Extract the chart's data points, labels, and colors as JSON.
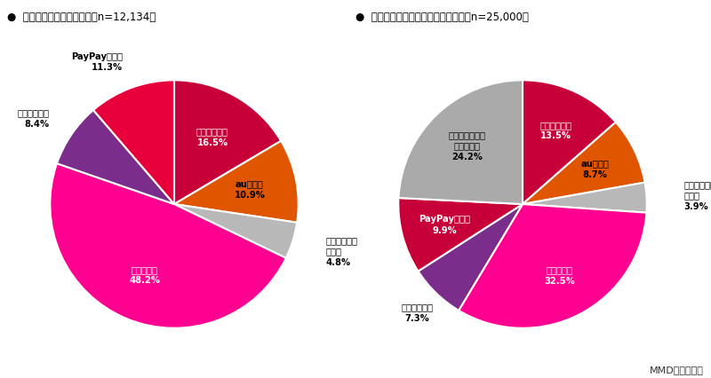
{
  "chart1_title": "●  最も意識している経済圏（n=12,134）",
  "chart2_title": "●  最も今後意識していきたい経済圏（n=25,000）",
  "source": "MMD研究所調べ",
  "chart1": {
    "values": [
      16.5,
      10.9,
      4.8,
      48.2,
      8.4,
      11.3
    ],
    "colors": [
      "#c8003a",
      "#e05500",
      "#b8b8b8",
      "#ff0090",
      "#7b2d8b",
      "#e8003d"
    ],
    "inner": [
      true,
      true,
      false,
      true,
      false,
      false
    ],
    "labels": [
      "ドコモ経済圏",
      "au経済圏",
      "ソフトバンク\n経済圏",
      "楽天経済圏",
      "イオン経済圏",
      "PayPay経済圏"
    ],
    "pcts": [
      "16.5%",
      "10.9%",
      "4.8%",
      "48.2%",
      "8.4%",
      "11.3%"
    ],
    "lcolors": [
      "#ffffff",
      "#000000",
      "#000000",
      "#ffffff",
      "#000000",
      "#000000"
    ],
    "rfrac": [
      0.62,
      0.62,
      1.28,
      0.62,
      1.22,
      1.22
    ],
    "ha": [
      "center",
      "center",
      "left",
      "center",
      "right",
      "right"
    ],
    "va": [
      "center",
      "center",
      "center",
      "center",
      "center",
      "center"
    ]
  },
  "chart2": {
    "values": [
      13.5,
      8.7,
      3.9,
      32.5,
      7.3,
      9.9,
      24.2
    ],
    "colors": [
      "#c8003a",
      "#e05500",
      "#b8b8b8",
      "#ff0090",
      "#7b2d8b",
      "#c8003a",
      "#aaaaaa"
    ],
    "inner": [
      true,
      true,
      false,
      true,
      false,
      true,
      true
    ],
    "labels": [
      "ドコモ経済圏",
      "au経済圏",
      "ソフトバンク\n経済圏",
      "楽天経済圏",
      "イオン経済圏",
      "PayPay経済圏",
      "今後、経済圏は\n意識しない"
    ],
    "pcts": [
      "13.5%",
      "8.7%",
      "3.9%",
      "32.5%",
      "7.3%",
      "9.9%",
      "24.2%"
    ],
    "lcolors": [
      "#ffffff",
      "#000000",
      "#000000",
      "#ffffff",
      "#000000",
      "#ffffff",
      "#000000"
    ],
    "rfrac": [
      0.65,
      0.65,
      1.3,
      0.65,
      1.22,
      0.65,
      0.65
    ],
    "ha": [
      "center",
      "center",
      "left",
      "center",
      "center",
      "center",
      "center"
    ],
    "va": [
      "center",
      "center",
      "center",
      "center",
      "center",
      "center",
      "center"
    ]
  }
}
